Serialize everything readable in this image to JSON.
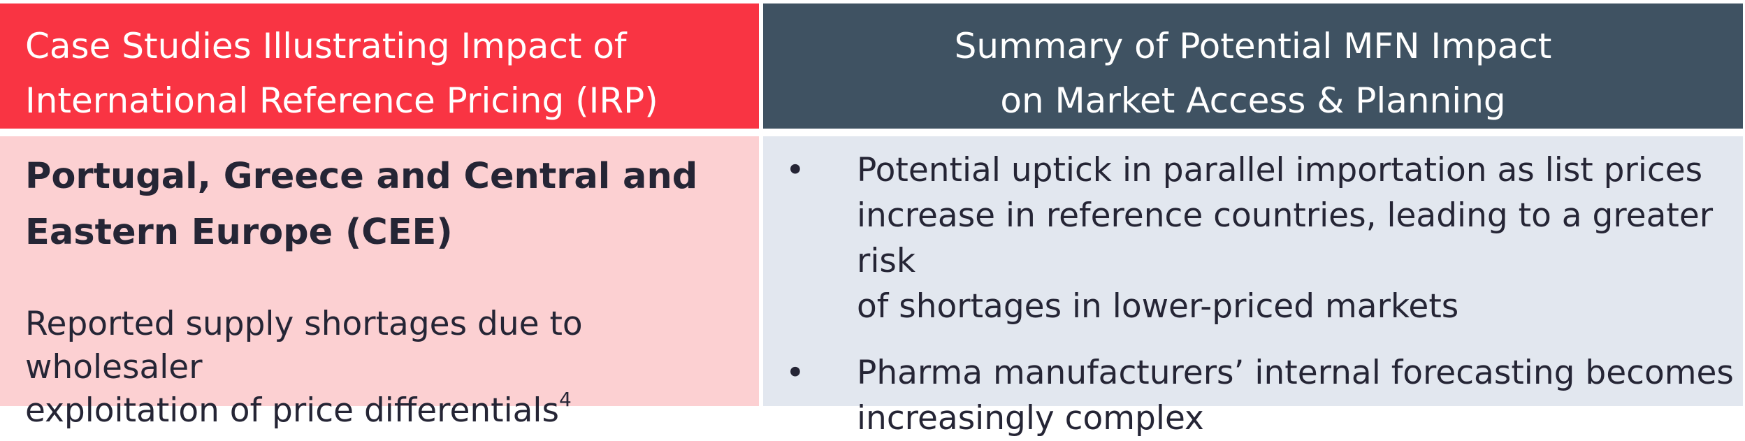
{
  "header": {
    "left": [
      "Case Studies Illustrating Impact of",
      "International Reference Pricing (IRP)"
    ],
    "right": [
      "Summary of Potential MFN Impact",
      "on Market Access & Planning"
    ]
  },
  "left": {
    "title": [
      "Portugal, Greece and Central and",
      "Eastern Europe (CEE)"
    ],
    "text": [
      "Reported supply shortages due to wholesaler",
      "exploitation of price differentials"
    ],
    "footnote": "4"
  },
  "right": {
    "bullet": "•",
    "items": [
      [
        "Potential uptick in parallel importation as list prices",
        "increase in reference countries, leading to a greater risk",
        "of shortages in lower-priced markets"
      ],
      [
        "Pharma manufacturers’ internal forecasting becomes",
        "increasingly complex"
      ]
    ]
  }
}
